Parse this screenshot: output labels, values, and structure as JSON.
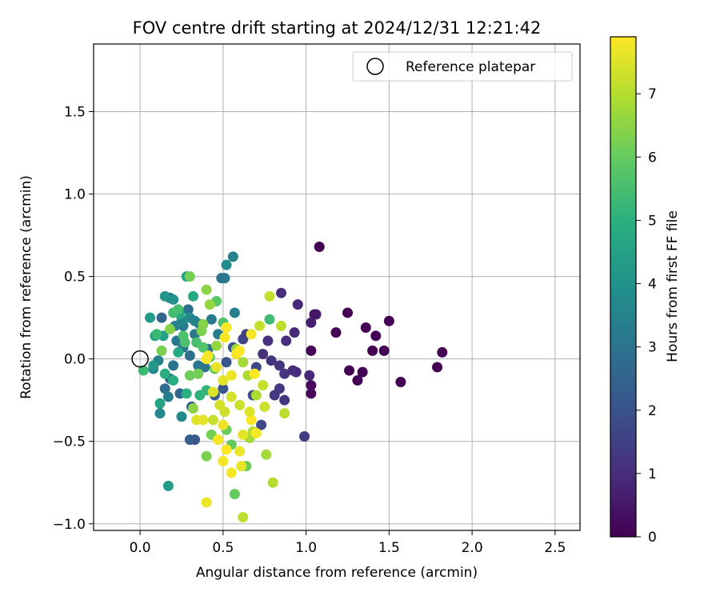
{
  "chart_data": {
    "type": "scatter",
    "title": "FOV centre drift starting at 2024/12/31 12:21:42",
    "xlabel": "Angular distance from reference (arcmin)",
    "ylabel": "Rotation from reference (arcmin)",
    "xlim": [
      -0.28,
      2.65
    ],
    "ylim": [
      -1.04,
      1.91
    ],
    "xticks": [
      0.0,
      0.5,
      1.0,
      1.5,
      2.0,
      2.5
    ],
    "xtick_labels": [
      "0.0",
      "0.5",
      "1.0",
      "1.5",
      "2.0",
      "2.5"
    ],
    "yticks": [
      -1.0,
      -0.5,
      0.0,
      0.5,
      1.0,
      1.5
    ],
    "ytick_labels": [
      "−1.0",
      "−0.5",
      "0.0",
      "0.5",
      "1.0",
      "1.5"
    ],
    "grid": true,
    "legend": {
      "position": "top-right",
      "entries": [
        "Reference platepar"
      ]
    },
    "reference_point": {
      "x": 0.0,
      "y": 0.0
    },
    "colorbar": {
      "label": "Hours from first FF file",
      "colormap": "viridis",
      "range": [
        0,
        7.9
      ],
      "ticks": [
        0,
        1,
        2,
        3,
        4,
        5,
        6,
        7
      ],
      "tick_labels": [
        "0",
        "1",
        "2",
        "3",
        "4",
        "5",
        "6",
        "7"
      ]
    },
    "points": [
      {
        "x": 1.08,
        "y": 0.68,
        "t": 0.0
      },
      {
        "x": 1.25,
        "y": 0.28,
        "t": 0.0
      },
      {
        "x": 1.5,
        "y": 0.23,
        "t": 0.0
      },
      {
        "x": 1.36,
        "y": 0.19,
        "t": 0.0
      },
      {
        "x": 1.42,
        "y": 0.14,
        "t": 0.0
      },
      {
        "x": 1.18,
        "y": 0.16,
        "t": 0.0
      },
      {
        "x": 1.4,
        "y": 0.05,
        "t": 0.0
      },
      {
        "x": 1.47,
        "y": 0.05,
        "t": 0.0
      },
      {
        "x": 1.82,
        "y": 0.04,
        "t": 0.0
      },
      {
        "x": 1.03,
        "y": 0.05,
        "t": 0.1
      },
      {
        "x": 1.26,
        "y": -0.07,
        "t": 0.0
      },
      {
        "x": 1.34,
        "y": -0.08,
        "t": 0.0
      },
      {
        "x": 1.31,
        "y": -0.13,
        "t": 0.0
      },
      {
        "x": 1.79,
        "y": -0.05,
        "t": 0.0
      },
      {
        "x": 1.57,
        "y": -0.14,
        "t": 0.0
      },
      {
        "x": 1.03,
        "y": -0.16,
        "t": 0.2
      },
      {
        "x": 1.03,
        "y": -0.21,
        "t": 0.2
      },
      {
        "x": 1.06,
        "y": 0.27,
        "t": 0.6
      },
      {
        "x": 1.05,
        "y": 0.27,
        "t": 0.5
      },
      {
        "x": 1.03,
        "y": 0.22,
        "t": 0.7
      },
      {
        "x": 0.95,
        "y": 0.33,
        "t": 0.9
      },
      {
        "x": 0.85,
        "y": 0.4,
        "t": 1.0
      },
      {
        "x": 0.93,
        "y": 0.16,
        "t": 0.9
      },
      {
        "x": 0.88,
        "y": 0.11,
        "t": 1.0
      },
      {
        "x": 0.77,
        "y": 0.11,
        "t": 1.1
      },
      {
        "x": 0.74,
        "y": 0.03,
        "t": 1.1
      },
      {
        "x": 0.79,
        "y": -0.01,
        "t": 1.2
      },
      {
        "x": 0.84,
        "y": -0.04,
        "t": 1.2
      },
      {
        "x": 0.87,
        "y": -0.09,
        "t": 1.2
      },
      {
        "x": 0.92,
        "y": -0.07,
        "t": 1.1
      },
      {
        "x": 0.94,
        "y": -0.08,
        "t": 1.0
      },
      {
        "x": 1.02,
        "y": -0.1,
        "t": 0.9
      },
      {
        "x": 0.81,
        "y": -0.22,
        "t": 1.3
      },
      {
        "x": 0.84,
        "y": -0.18,
        "t": 1.3
      },
      {
        "x": 0.87,
        "y": -0.25,
        "t": 1.2
      },
      {
        "x": 0.99,
        "y": -0.47,
        "t": 1.4
      },
      {
        "x": 0.62,
        "y": 0.12,
        "t": 1.6
      },
      {
        "x": 0.64,
        "y": 0.15,
        "t": 1.5
      },
      {
        "x": 0.7,
        "y": -0.05,
        "t": 1.7
      },
      {
        "x": 0.68,
        "y": -0.22,
        "t": 1.8
      },
      {
        "x": 0.73,
        "y": -0.4,
        "t": 1.8
      },
      {
        "x": 0.56,
        "y": 0.07,
        "t": 2.0
      },
      {
        "x": 0.52,
        "y": -0.02,
        "t": 2.1
      },
      {
        "x": 0.5,
        "y": -0.18,
        "t": 2.1
      },
      {
        "x": 0.45,
        "y": -0.22,
        "t": 2.3
      },
      {
        "x": 0.3,
        "y": -0.49,
        "t": 2.4
      },
      {
        "x": 0.33,
        "y": -0.49,
        "t": 2.2
      },
      {
        "x": 0.31,
        "y": -0.29,
        "t": 2.5
      },
      {
        "x": 0.24,
        "y": -0.21,
        "t": 2.6
      },
      {
        "x": 0.18,
        "y": -0.12,
        "t": 2.7
      },
      {
        "x": 0.15,
        "y": -0.18,
        "t": 2.8
      },
      {
        "x": 0.13,
        "y": 0.25,
        "t": 2.6
      },
      {
        "x": 0.18,
        "y": 0.37,
        "t": 2.8
      },
      {
        "x": 0.29,
        "y": 0.3,
        "t": 2.9
      },
      {
        "x": 0.36,
        "y": 0.21,
        "t": 3.0
      },
      {
        "x": 0.33,
        "y": 0.15,
        "t": 3.0
      },
      {
        "x": 0.3,
        "y": 0.02,
        "t": 2.9
      },
      {
        "x": 0.26,
        "y": 0.07,
        "t": 3.0
      },
      {
        "x": 0.22,
        "y": 0.11,
        "t": 3.1
      },
      {
        "x": 0.41,
        "y": 0.06,
        "t": 2.9
      },
      {
        "x": 0.39,
        "y": -0.05,
        "t": 3.0
      },
      {
        "x": 0.35,
        "y": -0.04,
        "t": 3.1
      },
      {
        "x": 0.49,
        "y": 0.49,
        "t": 3.1
      },
      {
        "x": 0.51,
        "y": 0.49,
        "t": 3.2
      },
      {
        "x": 0.56,
        "y": 0.62,
        "t": 3.4
      },
      {
        "x": 0.57,
        "y": 0.28,
        "t": 3.4
      },
      {
        "x": 0.2,
        "y": -0.04,
        "t": 3.1
      },
      {
        "x": 0.17,
        "y": -0.23,
        "t": 3.3
      },
      {
        "x": 0.26,
        "y": 0.2,
        "t": 3.2
      },
      {
        "x": 0.21,
        "y": 0.2,
        "t": 3.4
      },
      {
        "x": 0.43,
        "y": 0.24,
        "t": 3.2
      },
      {
        "x": 0.47,
        "y": 0.15,
        "t": 3.3
      },
      {
        "x": 0.11,
        "y": -0.01,
        "t": 3.5
      },
      {
        "x": 0.12,
        "y": -0.33,
        "t": 3.6
      },
      {
        "x": 0.25,
        "y": -0.35,
        "t": 3.7
      },
      {
        "x": 0.52,
        "y": 0.57,
        "t": 3.8
      },
      {
        "x": 0.08,
        "y": -0.06,
        "t": 3.7
      },
      {
        "x": 0.25,
        "y": 0.23,
        "t": 3.6
      },
      {
        "x": 0.3,
        "y": 0.25,
        "t": 3.7
      },
      {
        "x": 0.33,
        "y": 0.23,
        "t": 3.5
      },
      {
        "x": 0.15,
        "y": 0.38,
        "t": 4.1
      },
      {
        "x": 0.2,
        "y": 0.36,
        "t": 4.0
      },
      {
        "x": 0.08,
        "y": -0.04,
        "t": 4.2
      },
      {
        "x": 0.06,
        "y": 0.25,
        "t": 4.3
      },
      {
        "x": 0.17,
        "y": -0.77,
        "t": 4.3
      },
      {
        "x": 0.12,
        "y": -0.27,
        "t": 4.5
      },
      {
        "x": 0.09,
        "y": 0.14,
        "t": 4.5
      },
      {
        "x": 0.14,
        "y": 0.14,
        "t": 4.4
      },
      {
        "x": 0.24,
        "y": 0.27,
        "t": 4.6
      },
      {
        "x": 0.28,
        "y": 0.5,
        "t": 4.6
      },
      {
        "x": 0.32,
        "y": 0.38,
        "t": 4.7
      },
      {
        "x": 0.23,
        "y": 0.04,
        "t": 4.8
      },
      {
        "x": 0.15,
        "y": -0.09,
        "t": 4.9
      },
      {
        "x": 0.2,
        "y": -0.13,
        "t": 4.9
      },
      {
        "x": 0.28,
        "y": -0.21,
        "t": 5.0
      },
      {
        "x": 0.36,
        "y": -0.22,
        "t": 5.1
      },
      {
        "x": 0.4,
        "y": -0.19,
        "t": 5.2
      },
      {
        "x": 0.02,
        "y": -0.07,
        "t": 5.3
      },
      {
        "x": 0.1,
        "y": 0.15,
        "t": 5.3
      },
      {
        "x": 0.2,
        "y": 0.28,
        "t": 5.4
      },
      {
        "x": 0.23,
        "y": 0.3,
        "t": 5.5
      },
      {
        "x": 0.26,
        "y": 0.14,
        "t": 5.6
      },
      {
        "x": 0.27,
        "y": 0.1,
        "t": 5.6
      },
      {
        "x": 0.34,
        "y": 0.1,
        "t": 5.5
      },
      {
        "x": 0.38,
        "y": 0.07,
        "t": 5.7
      },
      {
        "x": 0.42,
        "y": 0.01,
        "t": 5.8
      },
      {
        "x": 0.45,
        "y": -0.06,
        "t": 5.9
      },
      {
        "x": 0.5,
        "y": 0.22,
        "t": 5.7
      },
      {
        "x": 0.46,
        "y": 0.35,
        "t": 5.8
      },
      {
        "x": 0.78,
        "y": 0.24,
        "t": 5.4
      },
      {
        "x": 0.57,
        "y": -0.82,
        "t": 6.0
      },
      {
        "x": 0.64,
        "y": -0.65,
        "t": 6.1
      },
      {
        "x": 0.55,
        "y": -0.52,
        "t": 6.0
      },
      {
        "x": 0.52,
        "y": -0.43,
        "t": 6.1
      },
      {
        "x": 0.43,
        "y": -0.46,
        "t": 6.2
      },
      {
        "x": 0.4,
        "y": -0.59,
        "t": 6.3
      },
      {
        "x": 0.3,
        "y": -0.1,
        "t": 6.1
      },
      {
        "x": 0.35,
        "y": -0.09,
        "t": 6.2
      },
      {
        "x": 0.3,
        "y": 0.5,
        "t": 6.2
      },
      {
        "x": 0.37,
        "y": 0.17,
        "t": 6.3
      },
      {
        "x": 0.38,
        "y": 0.21,
        "t": 6.4
      },
      {
        "x": 0.13,
        "y": 0.05,
        "t": 6.3
      },
      {
        "x": 0.18,
        "y": 0.18,
        "t": 6.4
      },
      {
        "x": 0.32,
        "y": -0.3,
        "t": 6.5
      },
      {
        "x": 0.4,
        "y": 0.42,
        "t": 6.5
      },
      {
        "x": 0.42,
        "y": 0.33,
        "t": 6.6
      },
      {
        "x": 0.46,
        "y": 0.08,
        "t": 6.6
      },
      {
        "x": 0.58,
        "y": 0.06,
        "t": 6.7
      },
      {
        "x": 0.62,
        "y": -0.02,
        "t": 6.8
      },
      {
        "x": 0.65,
        "y": -0.1,
        "t": 6.9
      },
      {
        "x": 0.7,
        "y": -0.22,
        "t": 6.9
      },
      {
        "x": 0.66,
        "y": -0.48,
        "t": 6.8
      },
      {
        "x": 0.68,
        "y": -0.44,
        "t": 7.0
      },
      {
        "x": 0.76,
        "y": -0.58,
        "t": 6.8
      },
      {
        "x": 0.8,
        "y": -0.75,
        "t": 7.0
      },
      {
        "x": 0.62,
        "y": -0.96,
        "t": 7.1
      },
      {
        "x": 0.85,
        "y": 0.2,
        "t": 7.1
      },
      {
        "x": 0.72,
        "y": 0.2,
        "t": 7.2
      },
      {
        "x": 0.78,
        "y": 0.38,
        "t": 7.2
      },
      {
        "x": 0.87,
        "y": -0.33,
        "t": 7.1
      },
      {
        "x": 0.75,
        "y": -0.29,
        "t": 7.3
      },
      {
        "x": 0.74,
        "y": -0.16,
        "t": 7.2
      },
      {
        "x": 0.6,
        "y": -0.28,
        "t": 7.3
      },
      {
        "x": 0.55,
        "y": -0.23,
        "t": 7.4
      },
      {
        "x": 0.51,
        "y": -0.32,
        "t": 7.3
      },
      {
        "x": 0.48,
        "y": -0.28,
        "t": 7.4
      },
      {
        "x": 0.44,
        "y": -0.37,
        "t": 7.2
      },
      {
        "x": 0.34,
        "y": -0.37,
        "t": 7.5
      },
      {
        "x": 0.38,
        "y": -0.37,
        "t": 7.6
      },
      {
        "x": 0.4,
        "y": -0.87,
        "t": 7.7
      },
      {
        "x": 0.5,
        "y": -0.62,
        "t": 7.8
      },
      {
        "x": 0.55,
        "y": -0.69,
        "t": 7.8
      },
      {
        "x": 0.61,
        "y": -0.65,
        "t": 7.6
      },
      {
        "x": 0.6,
        "y": -0.56,
        "t": 7.7
      },
      {
        "x": 0.52,
        "y": -0.55,
        "t": 7.9
      },
      {
        "x": 0.47,
        "y": -0.49,
        "t": 7.8
      },
      {
        "x": 0.5,
        "y": -0.4,
        "t": 7.7
      },
      {
        "x": 0.62,
        "y": -0.46,
        "t": 7.6
      },
      {
        "x": 0.7,
        "y": -0.45,
        "t": 7.8
      },
      {
        "x": 0.67,
        "y": -0.37,
        "t": 7.9
      },
      {
        "x": 0.44,
        "y": -0.2,
        "t": 7.5
      },
      {
        "x": 0.5,
        "y": -0.13,
        "t": 7.6
      },
      {
        "x": 0.55,
        "y": -0.1,
        "t": 7.7
      },
      {
        "x": 0.58,
        "y": 0.03,
        "t": 7.8
      },
      {
        "x": 0.6,
        "y": 0.05,
        "t": 7.9
      },
      {
        "x": 0.51,
        "y": 0.13,
        "t": 7.8
      },
      {
        "x": 0.52,
        "y": 0.19,
        "t": 7.9
      },
      {
        "x": 0.41,
        "y": 0.02,
        "t": 7.7
      },
      {
        "x": 0.46,
        "y": -0.05,
        "t": 7.6
      },
      {
        "x": 0.4,
        "y": 0.0,
        "t": 7.8
      },
      {
        "x": 0.69,
        "y": -0.09,
        "t": 7.9
      },
      {
        "x": 0.67,
        "y": 0.15,
        "t": 7.8
      },
      {
        "x": 0.66,
        "y": -0.32,
        "t": 7.5
      }
    ]
  }
}
